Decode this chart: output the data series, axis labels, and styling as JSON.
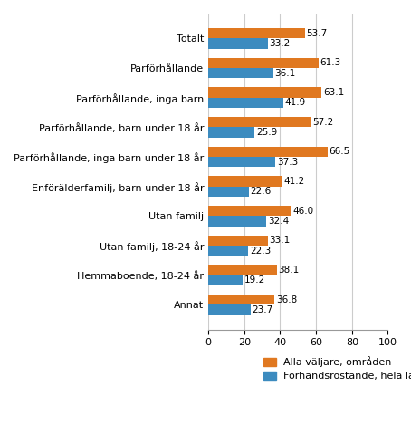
{
  "categories": [
    "Totalt",
    "Parförhållande",
    "Parförhållande, inga barn",
    "Parförhållande, barn under 18 år",
    "Parförhållande, inga barn under 18 år",
    "Enförälderfamilj, barn under 18 år",
    "Utan familj",
    "Utan familj, 18-24 år",
    "Hemmaboende, 18-24 år",
    "Annat"
  ],
  "alla_valjare": [
    53.7,
    61.3,
    63.1,
    57.2,
    66.5,
    41.2,
    46.0,
    33.1,
    38.1,
    36.8
  ],
  "forhandsrostande": [
    33.2,
    36.1,
    41.9,
    25.9,
    37.3,
    22.6,
    32.4,
    22.3,
    19.2,
    23.7
  ],
  "color_alla": "#E07820",
  "color_forhand": "#3C8BBF",
  "xlim": [
    0,
    100
  ],
  "xticks": [
    0,
    20,
    40,
    60,
    80,
    100
  ],
  "legend_alla": "Alla väljare, områden",
  "legend_forhand": "Förhandsröstande, hela landet",
  "bar_height": 0.35,
  "value_fontsize": 7.5,
  "label_fontsize": 8.0,
  "tick_fontsize": 8.0
}
